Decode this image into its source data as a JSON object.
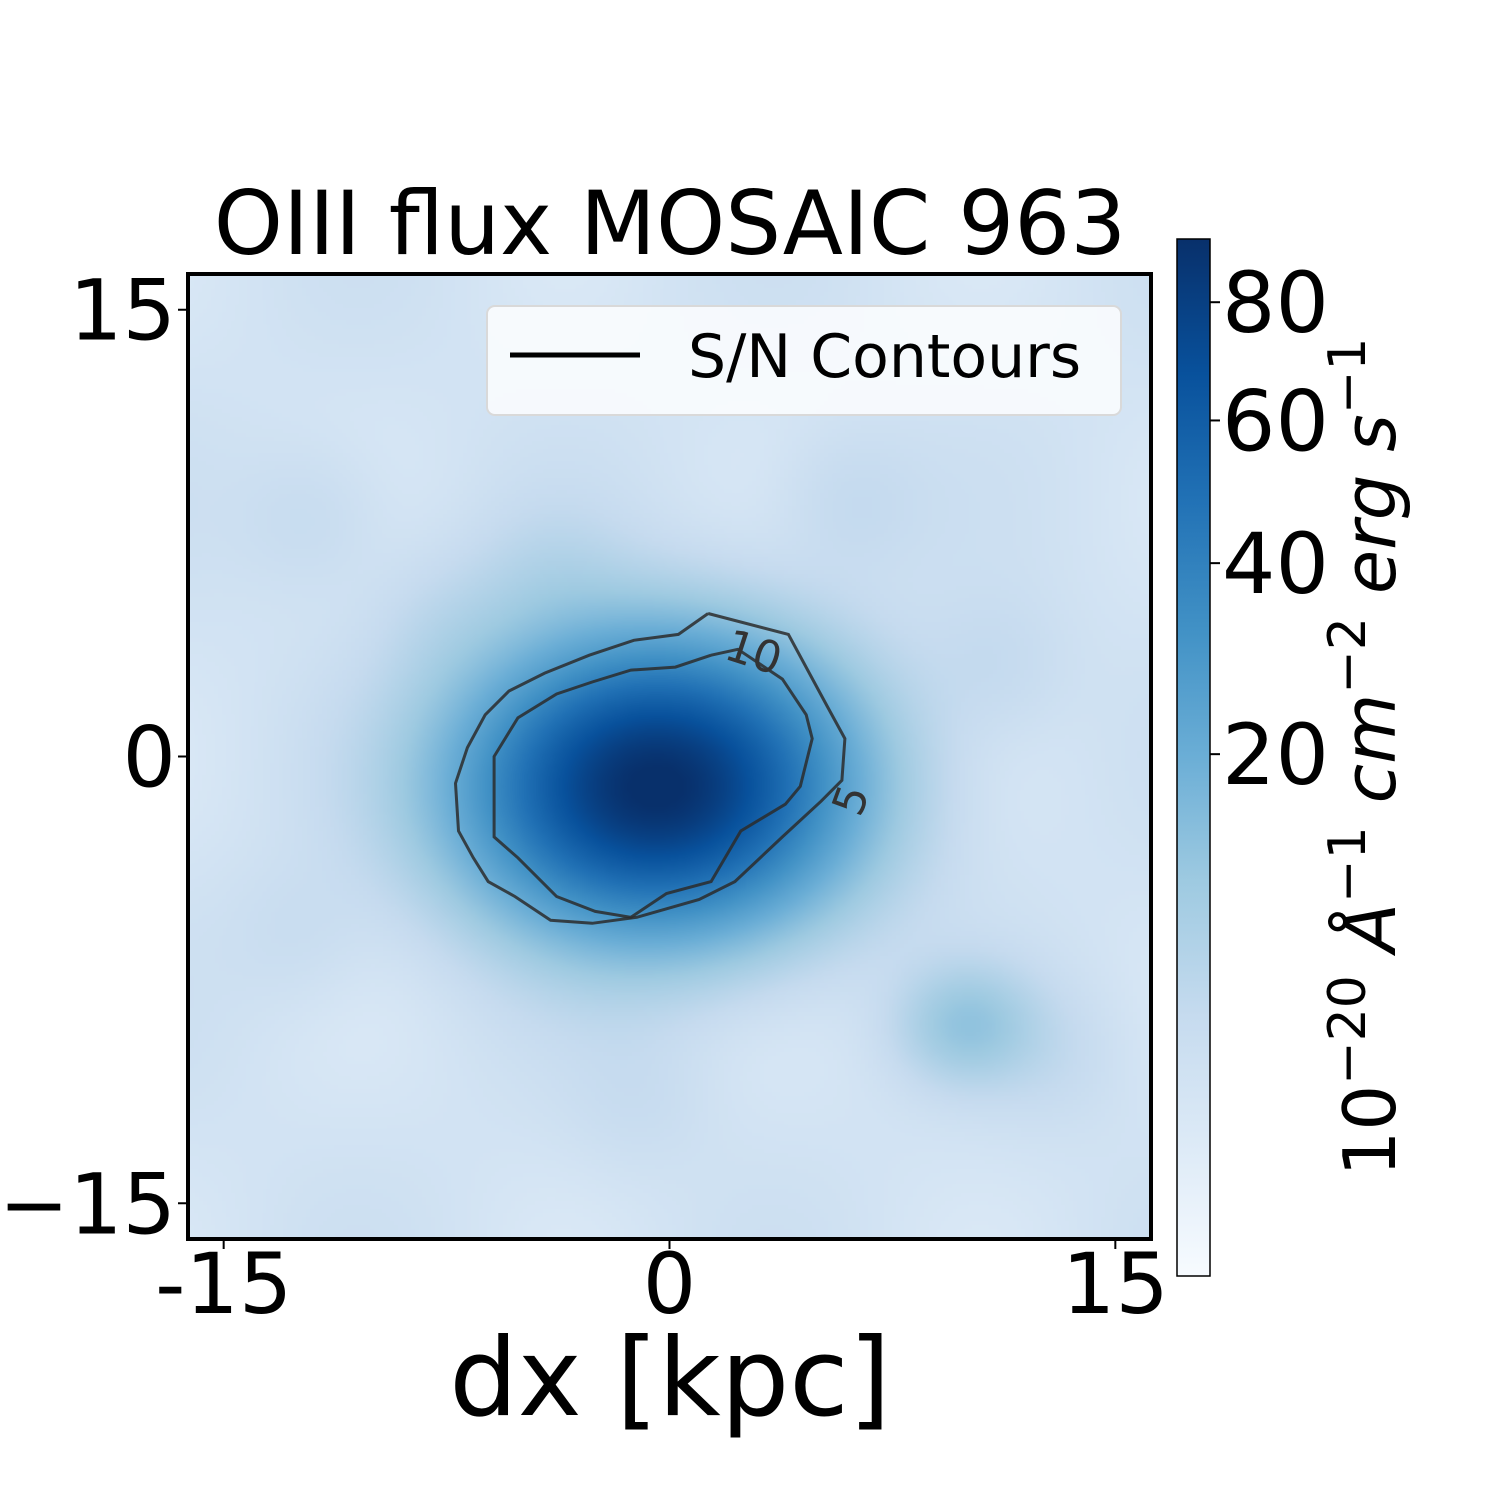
{
  "chart_data": {
    "type": "heatmap",
    "title": "OIII flux MOSAIC 963",
    "xlabel": "dx [kpc]",
    "ylabel": "",
    "xlim": [
      -16.2,
      16.2
    ],
    "ylim": [
      -16.2,
      16.2
    ],
    "x_ticks": [
      {
        "value": -15,
        "label": "-15"
      },
      {
        "value": 0,
        "label": "0"
      },
      {
        "value": 15,
        "label": "15"
      }
    ],
    "y_ticks": [
      {
        "value": 15,
        "label": "15"
      },
      {
        "value": 0,
        "label": "0"
      },
      {
        "value": -15,
        "label": "−15"
      }
    ],
    "colormap": "Blues",
    "colorbar": {
      "label_base": "10",
      "label_exp": "−20",
      "label_parts": [
        {
          "text": " Å",
          "sup": "−1"
        },
        {
          "text": " cm",
          "sup": "−2"
        },
        {
          "text": " erg s",
          "sup": "−1"
        }
      ],
      "vmin": 0,
      "vmax": 92,
      "scale": "nonlinear",
      "ticks": [
        {
          "value": 20,
          "label": "20"
        },
        {
          "value": 40,
          "label": "40"
        },
        {
          "value": 60,
          "label": "60"
        },
        {
          "value": 80,
          "label": "80"
        }
      ]
    },
    "sources": [
      {
        "name": "main",
        "x": -0.5,
        "y": -1.0,
        "peak": 92,
        "sx": 3.8,
        "sy": 2.9
      },
      {
        "name": "secondary",
        "x": 10.0,
        "y": -9.0,
        "peak": 9,
        "sx": 1.5,
        "sy": 1.3
      }
    ],
    "contours": [
      {
        "level": 5,
        "label": "5",
        "label_at": [
          6.2,
          -1.5
        ],
        "points": [
          [
            1.3,
            4.8
          ],
          [
            4.0,
            4.1
          ],
          [
            5.3,
            1.7
          ],
          [
            5.9,
            0.6
          ],
          [
            5.8,
            -0.8
          ],
          [
            5.1,
            -1.5
          ],
          [
            3.8,
            -2.7
          ],
          [
            2.2,
            -4.2
          ],
          [
            1.0,
            -4.8
          ],
          [
            -1.1,
            -5.4
          ],
          [
            -2.6,
            -5.6
          ],
          [
            -4.0,
            -5.5
          ],
          [
            -5.2,
            -4.7
          ],
          [
            -6.1,
            -4.2
          ],
          [
            -6.6,
            -3.4
          ],
          [
            -7.1,
            -2.5
          ],
          [
            -7.2,
            -0.9
          ],
          [
            -6.8,
            0.3
          ],
          [
            -6.2,
            1.4
          ],
          [
            -5.4,
            2.2
          ],
          [
            -4.2,
            2.8
          ],
          [
            -2.7,
            3.4
          ],
          [
            -1.2,
            3.9
          ],
          [
            0.3,
            4.1
          ],
          [
            1.3,
            4.8
          ]
        ]
      },
      {
        "level": 10,
        "label": "10",
        "label_at": [
          2.8,
          3.4
        ],
        "points": [
          [
            1.4,
            3.4
          ],
          [
            0.2,
            3.0
          ],
          [
            -1.3,
            2.9
          ],
          [
            -2.6,
            2.5
          ],
          [
            -3.8,
            2.1
          ],
          [
            -5.1,
            1.3
          ],
          [
            -5.9,
            0.0
          ],
          [
            -5.9,
            -2.7
          ],
          [
            -5.1,
            -3.4
          ],
          [
            -3.8,
            -4.7
          ],
          [
            -2.5,
            -5.2
          ],
          [
            -1.3,
            -5.4
          ],
          [
            -0.1,
            -4.6
          ],
          [
            1.4,
            -4.2
          ],
          [
            2.4,
            -2.5
          ],
          [
            3.9,
            -1.6
          ],
          [
            4.4,
            -1.0
          ],
          [
            4.8,
            0.6
          ],
          [
            4.6,
            1.4
          ],
          [
            4.2,
            2.0
          ],
          [
            3.8,
            2.6
          ],
          [
            2.3,
            3.6
          ],
          [
            1.4,
            3.4
          ]
        ]
      }
    ],
    "legend": {
      "label": "S/N Contours",
      "position": "upper right"
    }
  }
}
